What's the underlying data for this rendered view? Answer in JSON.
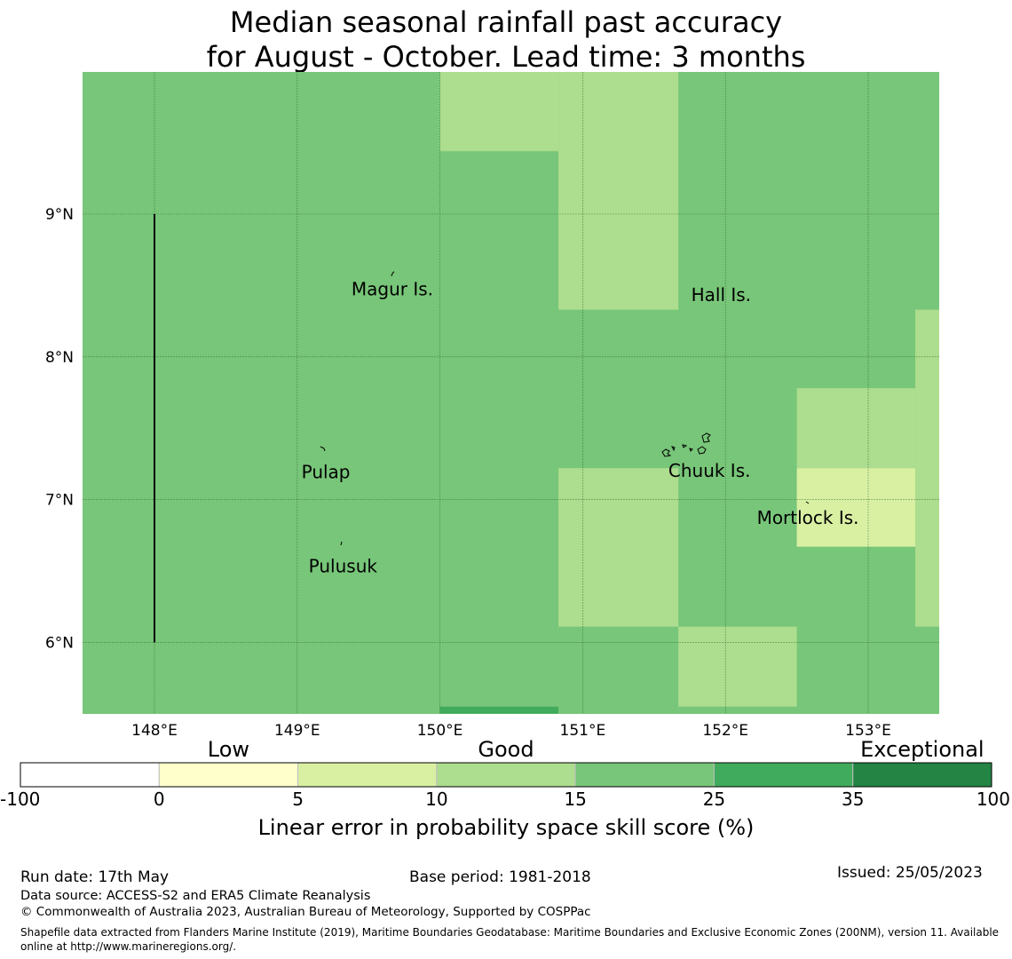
{
  "title": {
    "line1": "Median seasonal rainfall past accuracy",
    "line2": "for August - October. Lead time: 3 months"
  },
  "map": {
    "lon_range": [
      147.5,
      153.5
    ],
    "lat_range": [
      5.5,
      10.0
    ],
    "base_color": "#78c679",
    "lon_ticks": [
      {
        "value": 148,
        "label": "148°E"
      },
      {
        "value": 149,
        "label": "149°E"
      },
      {
        "value": 150,
        "label": "150°E"
      },
      {
        "value": 151,
        "label": "151°E"
      },
      {
        "value": 152,
        "label": "152°E"
      },
      {
        "value": 153,
        "label": "153°E"
      }
    ],
    "lat_ticks": [
      {
        "value": 9,
        "label": "9°N"
      },
      {
        "value": 8,
        "label": "8°N"
      },
      {
        "value": 7,
        "label": "7°N"
      },
      {
        "value": 6,
        "label": "6°N"
      }
    ],
    "cells": [
      {
        "lon": [
          150.0,
          150.83
        ],
        "lat": [
          9.44,
          10.0
        ],
        "color": "#addd8e"
      },
      {
        "lon": [
          150.83,
          151.67
        ],
        "lat": [
          8.33,
          10.0
        ],
        "color": "#addd8e"
      },
      {
        "lon": [
          152.5,
          153.33
        ],
        "lat": [
          7.22,
          7.78
        ],
        "color": "#addd8e"
      },
      {
        "lon": [
          153.33,
          153.5
        ],
        "lat": [
          6.11,
          8.33
        ],
        "color": "#addd8e"
      },
      {
        "lon": [
          152.5,
          153.33
        ],
        "lat": [
          6.67,
          7.22
        ],
        "color": "#d9f0a3"
      },
      {
        "lon": [
          150.83,
          151.67
        ],
        "lat": [
          6.11,
          7.22
        ],
        "color": "#addd8e"
      },
      {
        "lon": [
          151.67,
          152.5
        ],
        "lat": [
          5.55,
          6.11
        ],
        "color": "#addd8e"
      },
      {
        "lon": [
          150.0,
          150.83
        ],
        "lat": [
          5.5,
          5.55
        ],
        "color": "#41ab5d"
      }
    ],
    "labels": [
      {
        "name": "Magur Is.",
        "lon": 149.38,
        "lat": 8.48,
        "id": "magur"
      },
      {
        "name": "Hall Is.",
        "lon": 151.76,
        "lat": 8.44,
        "id": "hall"
      },
      {
        "name": "Pulap",
        "lon": 149.03,
        "lat": 7.2,
        "id": "pulap"
      },
      {
        "name": "Chuuk Is.",
        "lon": 151.6,
        "lat": 7.21,
        "id": "chuuk"
      },
      {
        "name": "Mortlock Is.",
        "lon": 152.22,
        "lat": 6.88,
        "id": "mortlock"
      },
      {
        "name": "Pulusuk",
        "lon": 149.08,
        "lat": 6.54,
        "id": "pulusuk"
      }
    ],
    "boundary_line": {
      "lon": 148.0,
      "lat": [
        6.0,
        9.0
      ]
    }
  },
  "colorbar": {
    "categories": [
      {
        "label": "Low",
        "at": 1.5
      },
      {
        "label": "Good",
        "at": 3.5
      },
      {
        "label": "Exceptional",
        "at": 6.5
      }
    ],
    "bins": [
      {
        "color": "#ffffff"
      },
      {
        "color": "#ffffcc"
      },
      {
        "color": "#d9f0a3"
      },
      {
        "color": "#addd8e"
      },
      {
        "color": "#78c679"
      },
      {
        "color": "#41ab5d"
      },
      {
        "color": "#238443"
      }
    ],
    "ticks": [
      "-100",
      "0",
      "5",
      "10",
      "15",
      "25",
      "35",
      "100"
    ],
    "label": "Linear error in probability space skill score (%)"
  },
  "footer": {
    "run_date": "Run date: 17th May",
    "base_period": "Base period: 1981-2018",
    "issued": "Issued: 25/05/2023",
    "data_source": "Data source: ACCESS-S2 and ERA5 Climate Reanalysis",
    "copyright": "© Commonwealth of Australia 2023, Australian Bureau of Meteorology, Supported by COSPPac",
    "shapefile": "Shapefile data extracted from Flanders Marine Institute (2019), Maritime Boundaries Geodatabase: Maritime Boundaries and Exclusive Economic Zones (200NM), version 11. Available online at http://www.marineregions.org/."
  }
}
